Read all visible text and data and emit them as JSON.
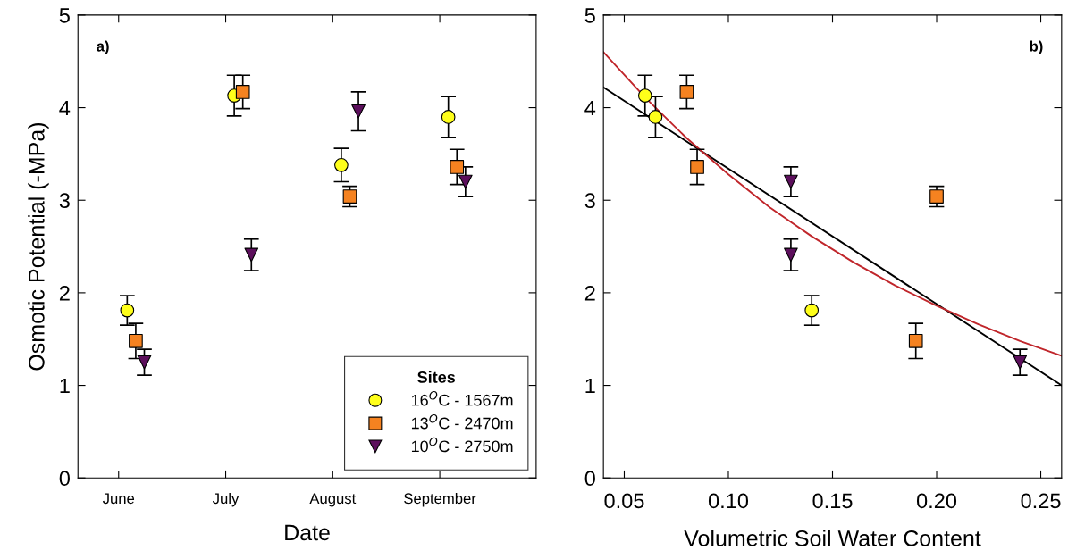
{
  "chart_data": [
    {
      "type": "scatter",
      "xlabel": "Date",
      "ylabel": "Osmotic Potential (-MPa)",
      "annotations": [
        "a)"
      ],
      "categories": [
        "June",
        "July",
        "August",
        "September"
      ],
      "ylim": [
        0,
        5
      ],
      "yticks": [
        0,
        1,
        2,
        3,
        4,
        5
      ],
      "legend": "bottom right",
      "legend_title": "Sites",
      "grid": false,
      "series": [
        {
          "name": "16$^{O}$C - 1567m",
          "color": "#ffff1a",
          "marker": "circle",
          "values": [
            1.81,
            4.13,
            3.38,
            3.9
          ],
          "errors": [
            0.16,
            0.22,
            0.18,
            0.22
          ]
        },
        {
          "name": "13$^{O}$C - 2470m",
          "color": "#f58220",
          "marker": "square",
          "values": [
            1.48,
            4.17,
            3.04,
            3.36
          ],
          "errors": [
            0.19,
            0.18,
            0.11,
            0.19
          ]
        },
        {
          "name": "10$^{O}$C - 2750m",
          "color": "#5c0f5c",
          "marker": "triangle",
          "values": [
            1.25,
            2.41,
            3.96,
            3.2
          ],
          "errors": [
            0.14,
            0.17,
            0.21,
            0.16
          ]
        }
      ]
    },
    {
      "type": "scatter",
      "xlabel": "Volumetric Soil Water Content",
      "annotations": [
        "b)"
      ],
      "xlim": [
        0.04,
        0.26
      ],
      "xticks": [
        {
          "value": 0.05,
          "label": "0.05"
        },
        {
          "value": 0.1,
          "label": "0.10"
        },
        {
          "value": 0.15,
          "label": "0.15"
        },
        {
          "value": 0.2,
          "label": "0.20"
        },
        {
          "value": 0.25,
          "label": "0.25"
        }
      ],
      "ylim": [
        0,
        5
      ],
      "yticks": [
        0,
        1,
        2,
        3,
        4,
        5
      ],
      "grid": false,
      "series": [
        {
          "color": "#ffff1a",
          "marker": "circle",
          "x": [
            0.06,
            0.065,
            0.14
          ],
          "values": [
            4.13,
            3.9,
            1.81
          ],
          "errors": [
            0.22,
            0.22,
            0.16
          ]
        },
        {
          "color": "#f58220",
          "marker": "square",
          "x": [
            0.08,
            0.085,
            0.19,
            0.2
          ],
          "values": [
            4.17,
            3.36,
            1.48,
            3.04
          ],
          "errors": [
            0.18,
            0.19,
            0.19,
            0.11
          ]
        },
        {
          "color": "#5c0f5c",
          "marker": "triangle",
          "x": [
            0.13,
            0.13,
            0.24
          ],
          "values": [
            3.2,
            2.41,
            1.25
          ],
          "errors": [
            0.16,
            0.17,
            0.14
          ]
        },
        {
          "type": "line",
          "color": "#000000",
          "marker": "none",
          "x": [
            0.04,
            0.26
          ],
          "values": [
            4.22,
            1.0
          ]
        },
        {
          "type": "line",
          "color": "#c0262b",
          "marker": "none",
          "x": [
            0.04,
            0.06,
            0.08,
            0.1,
            0.12,
            0.14,
            0.16,
            0.18,
            0.2,
            0.22,
            0.24,
            0.26
          ],
          "values": [
            4.6,
            4.11,
            3.67,
            3.28,
            2.92,
            2.61,
            2.33,
            2.08,
            1.86,
            1.66,
            1.48,
            1.32
          ]
        }
      ]
    }
  ]
}
